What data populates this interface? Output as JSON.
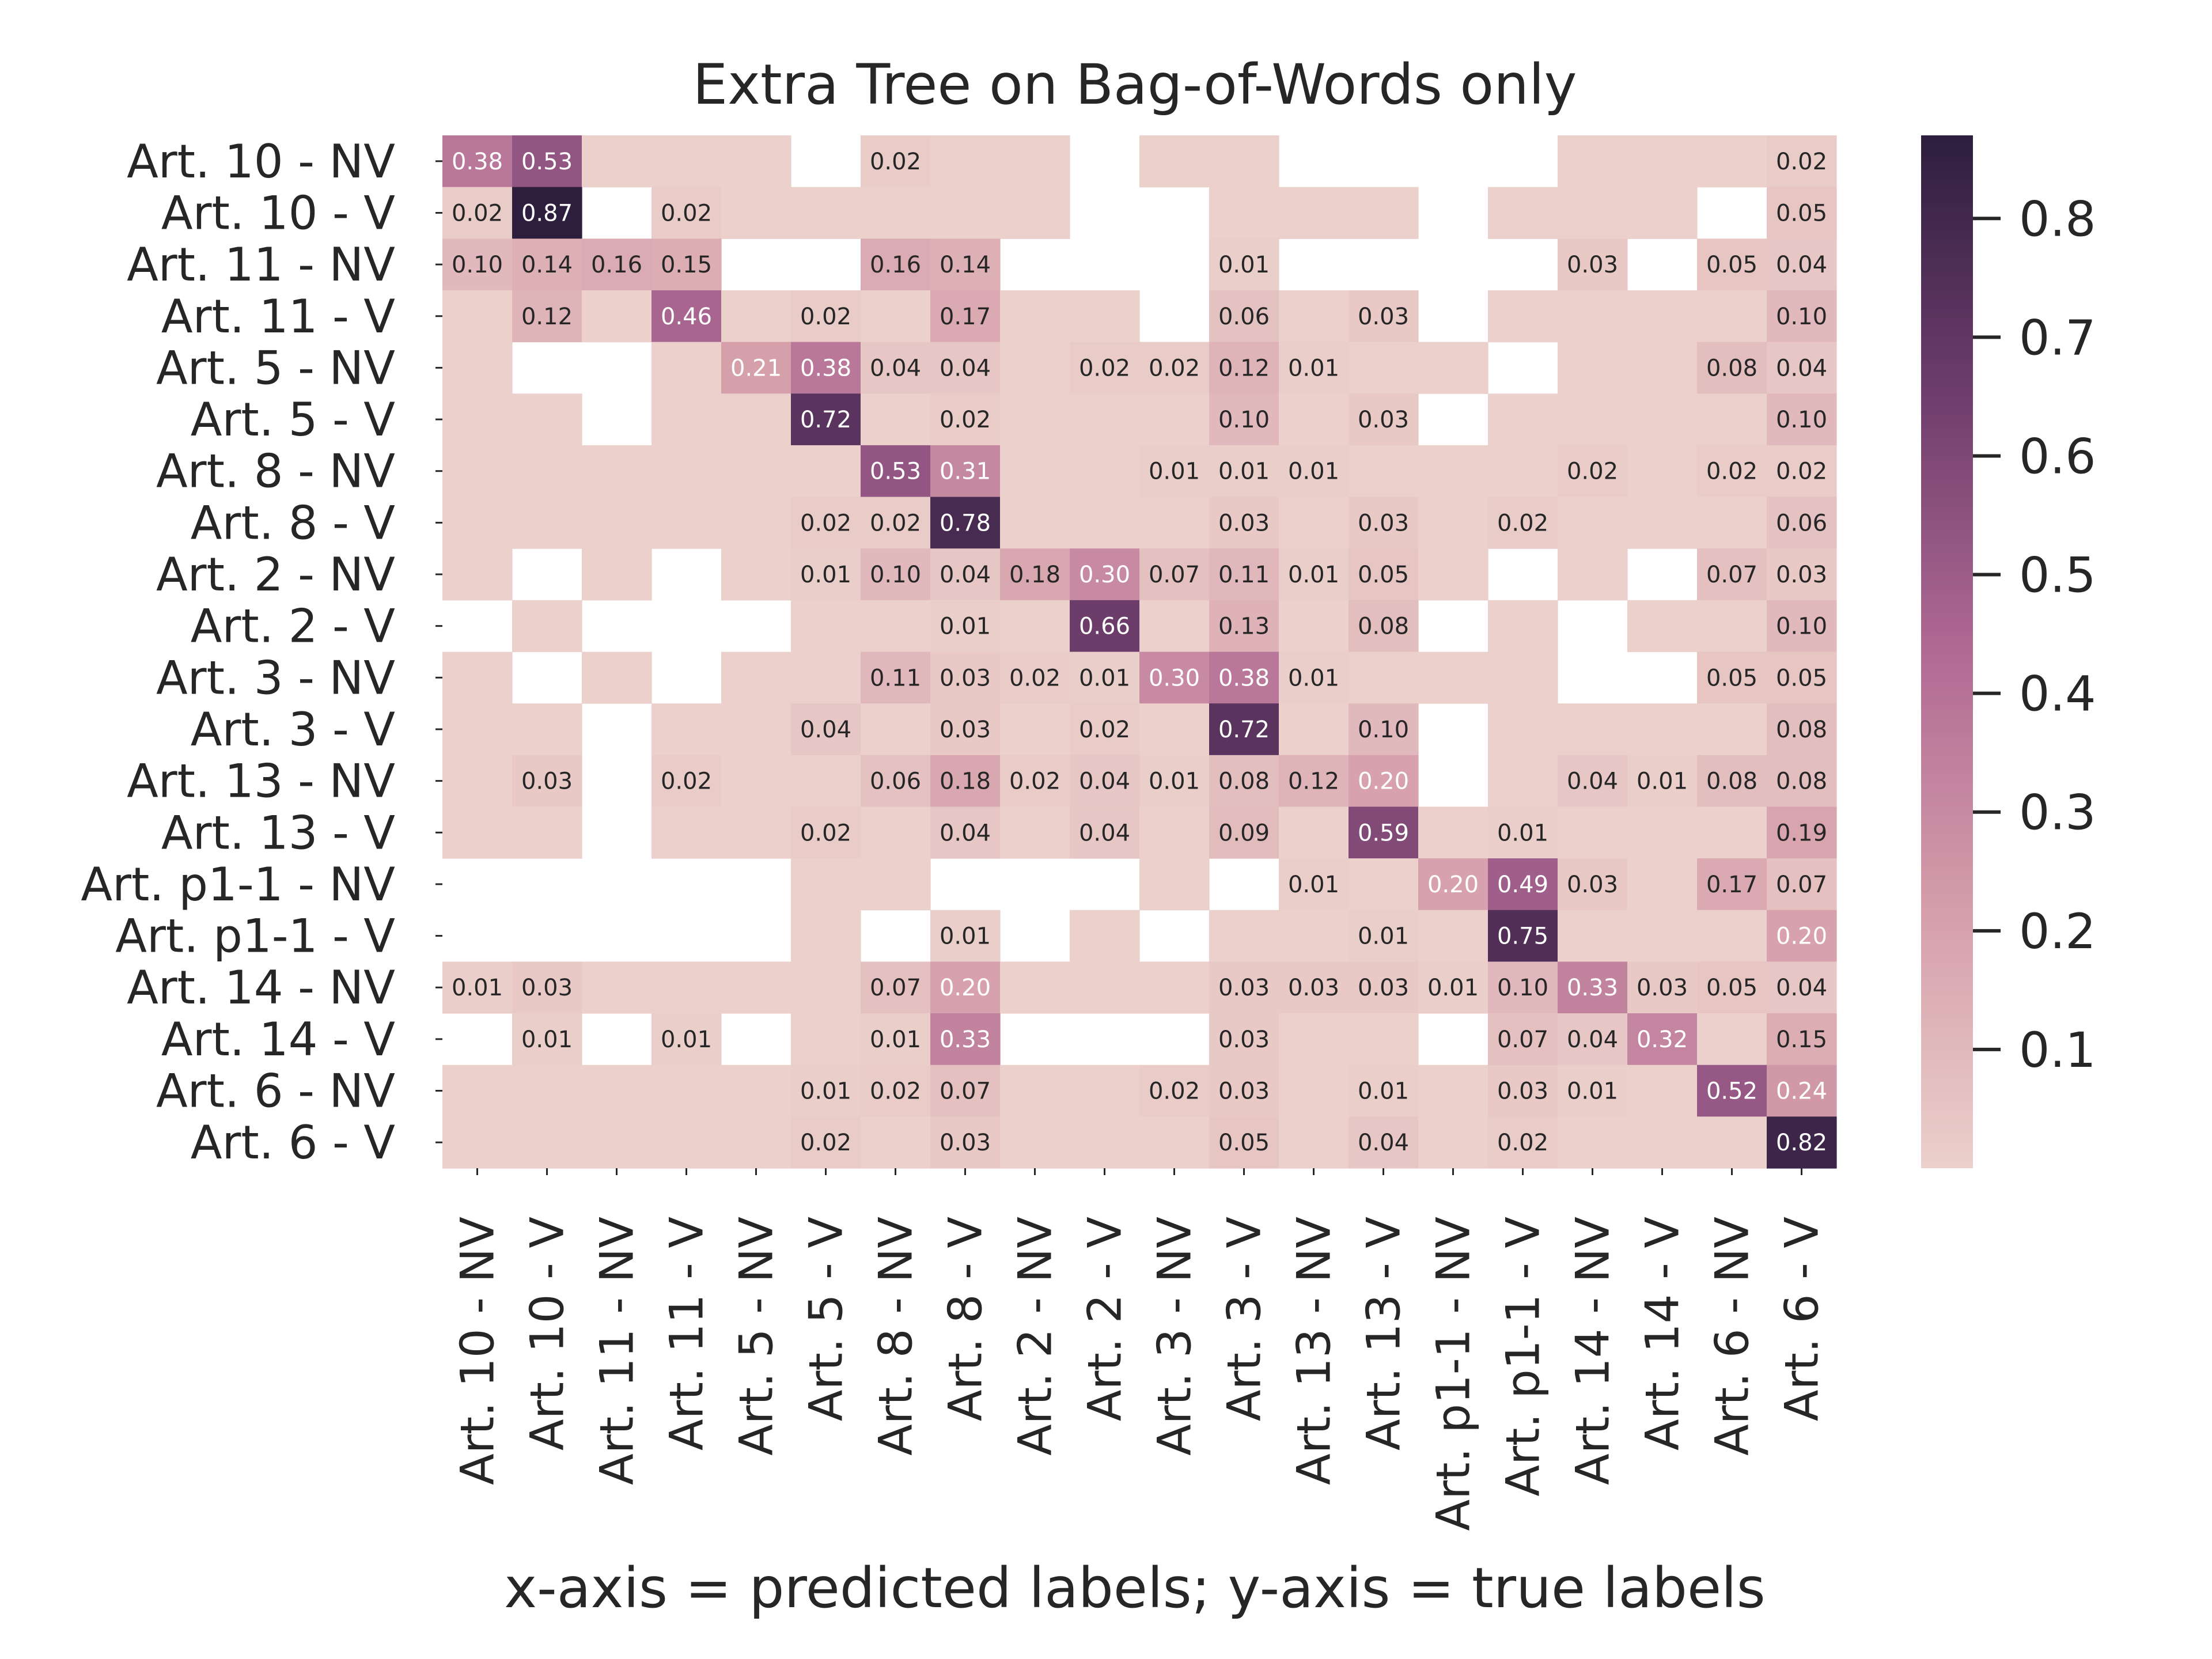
{
  "chart_data": {
    "type": "heatmap",
    "title": "Extra Tree on Bag-of-Words only",
    "xlabel": "x-axis = predicted labels; y-axis = true labels",
    "ylabel": "",
    "x_categories": [
      "Art. 10 - NV",
      "Art. 10 - V",
      "Art. 11 - NV",
      "Art. 11 - V",
      "Art. 5 - NV",
      "Art. 5 - V",
      "Art. 8 - NV",
      "Art. 8 - V",
      "Art. 2 - NV",
      "Art. 2 - V",
      "Art. 3 - NV",
      "Art. 3 - V",
      "Art. 13 - NV",
      "Art. 13 - V",
      "Art. p1-1 - NV",
      "Art. p1-1 - V",
      "Art. 14 - NV",
      "Art. 14 - V",
      "Art. 6 - NV",
      "Art. 6 - V"
    ],
    "y_categories": [
      "Art. 10 - NV",
      "Art. 10 - V",
      "Art. 11 - NV",
      "Art. 11 - V",
      "Art. 5 - NV",
      "Art. 5 - V",
      "Art. 8 - NV",
      "Art. 8 - V",
      "Art. 2 - NV",
      "Art. 2 - V",
      "Art. 3 - NV",
      "Art. 3 - V",
      "Art. 13 - NV",
      "Art. 13 - V",
      "Art. p1-1 - NV",
      "Art. p1-1 - V",
      "Art. 14 - NV",
      "Art. 14 - V",
      "Art. 6 - NV",
      "Art. 6 - V"
    ],
    "values": [
      [
        0.38,
        0.53,
        0,
        0,
        0,
        null,
        0.02,
        0,
        0,
        null,
        0,
        0,
        null,
        null,
        null,
        null,
        0,
        0,
        0,
        0.02
      ],
      [
        0.02,
        0.87,
        null,
        0.02,
        0,
        0,
        0,
        0,
        0,
        null,
        null,
        0,
        0,
        0,
        null,
        0,
        0,
        0,
        null,
        0.05
      ],
      [
        0.1,
        0.14,
        0.16,
        0.15,
        null,
        null,
        0.16,
        0.14,
        null,
        null,
        null,
        0.01,
        null,
        null,
        null,
        null,
        0.03,
        null,
        0.05,
        0.04
      ],
      [
        0,
        0.12,
        0,
        0.46,
        0,
        0.02,
        0,
        0.17,
        0,
        0,
        null,
        0.06,
        0,
        0.03,
        null,
        0,
        0,
        0,
        0,
        0.1
      ],
      [
        0,
        null,
        null,
        0,
        0.21,
        0.38,
        0.04,
        0.04,
        0,
        0.02,
        0.02,
        0.12,
        0.01,
        0,
        0,
        null,
        0,
        0,
        0.08,
        0.04
      ],
      [
        0,
        0,
        null,
        0,
        0,
        0.72,
        0,
        0.02,
        0,
        0,
        0,
        0.1,
        0,
        0.03,
        null,
        0,
        0,
        0,
        0,
        0.1
      ],
      [
        0,
        0,
        0,
        0,
        0,
        0,
        0.53,
        0.31,
        0,
        0,
        0.01,
        0.01,
        0.01,
        0,
        0,
        0,
        0.02,
        0,
        0.02,
        0.02
      ],
      [
        0,
        0,
        0,
        0,
        0,
        0.02,
        0.02,
        0.78,
        0,
        0,
        0,
        0.03,
        0,
        0.03,
        0,
        0.02,
        0,
        0,
        0,
        0.06
      ],
      [
        0,
        null,
        0,
        null,
        0,
        0.01,
        0.1,
        0.04,
        0.18,
        0.3,
        0.07,
        0.11,
        0.01,
        0.05,
        0,
        null,
        0,
        null,
        0.07,
        0.03
      ],
      [
        null,
        0,
        null,
        null,
        null,
        0,
        0,
        0.01,
        0,
        0.66,
        0,
        0.13,
        0,
        0.08,
        null,
        0,
        null,
        0,
        0,
        0.1
      ],
      [
        0,
        null,
        0,
        null,
        0,
        0,
        0.11,
        0.03,
        0.02,
        0.01,
        0.3,
        0.38,
        0.01,
        0,
        0,
        0,
        null,
        null,
        0.05,
        0.05
      ],
      [
        0,
        0,
        null,
        0,
        0,
        0.04,
        0,
        0.03,
        0,
        0.02,
        0,
        0.72,
        0,
        0.1,
        null,
        0,
        0,
        0,
        0,
        0.08
      ],
      [
        0,
        0.03,
        null,
        0.02,
        0,
        0,
        0.06,
        0.18,
        0.02,
        0.04,
        0.01,
        0.08,
        0.12,
        0.2,
        null,
        0,
        0.04,
        0.01,
        0.08,
        0.08
      ],
      [
        0,
        0,
        null,
        0,
        0,
        0.02,
        0,
        0.04,
        0,
        0.04,
        0,
        0.09,
        0,
        0.59,
        0,
        0.01,
        0,
        0,
        0,
        0.19
      ],
      [
        null,
        null,
        null,
        null,
        null,
        0,
        0,
        null,
        null,
        null,
        0,
        null,
        0.01,
        0,
        0.2,
        0.49,
        0.03,
        0,
        0.17,
        0.07
      ],
      [
        null,
        null,
        null,
        null,
        null,
        0,
        null,
        0.01,
        null,
        0,
        null,
        0,
        0,
        0.01,
        0,
        0.75,
        0,
        0,
        0,
        0.2
      ],
      [
        0.01,
        0.03,
        0,
        0,
        0,
        0,
        0.07,
        0.2,
        0,
        0,
        0,
        0.03,
        0.03,
        0.03,
        0.01,
        0.1,
        0.33,
        0.03,
        0.05,
        0.04
      ],
      [
        null,
        0.01,
        null,
        0.01,
        null,
        0,
        0.01,
        0.33,
        null,
        null,
        null,
        0.03,
        0,
        0,
        null,
        0.07,
        0.04,
        0.32,
        0,
        0.15
      ],
      [
        0,
        0,
        0,
        0,
        0,
        0.01,
        0.02,
        0.07,
        0,
        0,
        0.02,
        0.03,
        0,
        0.01,
        0,
        0.03,
        0.01,
        0,
        0.52,
        0.24
      ],
      [
        0,
        0,
        0,
        0,
        0,
        0.02,
        0,
        0.03,
        0,
        0,
        0,
        0.05,
        0,
        0.04,
        0,
        0.02,
        0,
        0,
        0,
        0.82
      ]
    ],
    "value_format": "two decimals, zero cells unlabeled, null cells blank",
    "colorbar": {
      "ticks": [
        "0.1",
        "0.2",
        "0.3",
        "0.4",
        "0.5",
        "0.6",
        "0.7",
        "0.8"
      ],
      "vmin": 0.0,
      "vmax": 0.87
    },
    "colormap": [
      "#ebd0cb",
      "#d59eaa",
      "#b06a94",
      "#6e3d6c",
      "#2d1e3e"
    ],
    "legend": "colorbar right",
    "grid": false
  }
}
